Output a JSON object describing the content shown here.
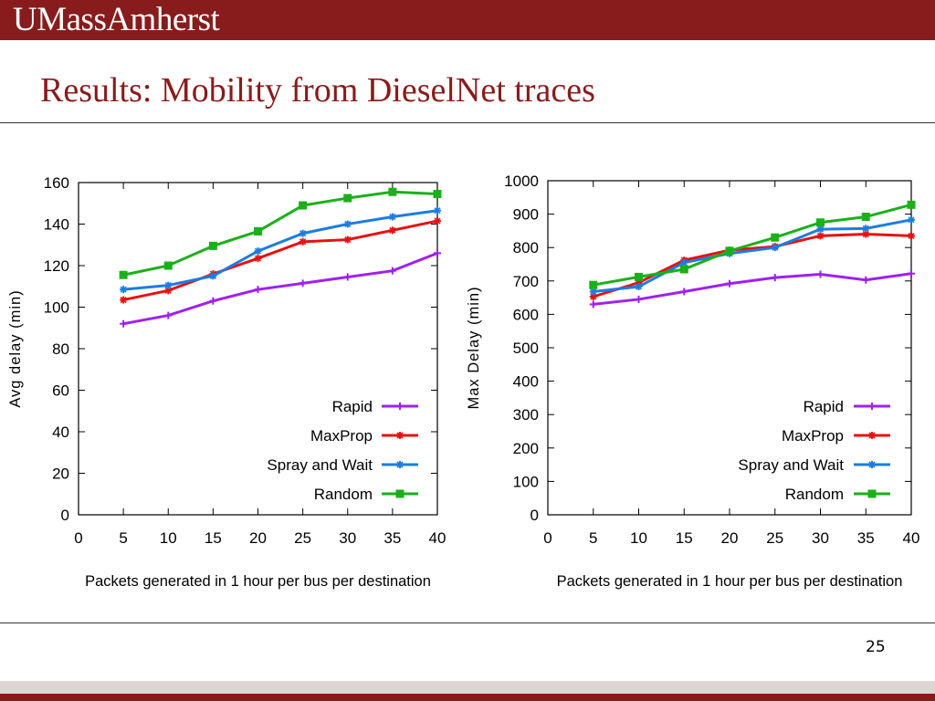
{
  "header": {
    "logo_text": "UMassAmherst",
    "bar_color": "#881c1c"
  },
  "slide": {
    "title": "Results: Mobility from DieselNet traces",
    "page_number": "25"
  },
  "chart_data": [
    {
      "type": "line",
      "title": "",
      "xlabel": "Packets generated in 1 hour per bus per destination",
      "ylabel": "Avg delay (min)",
      "x_ticks": [
        "0",
        "5",
        "10",
        "15",
        "20",
        "25",
        "30",
        "35",
        "40"
      ],
      "y_ticks": [
        "0",
        "20",
        "40",
        "60",
        "80",
        "100",
        "120",
        "140",
        "160"
      ],
      "xlim": [
        0,
        40
      ],
      "ylim": [
        0,
        160
      ],
      "legend_position": "bottom-right",
      "grid": false,
      "x": [
        5,
        10,
        15,
        20,
        25,
        30,
        35,
        40
      ],
      "series": [
        {
          "name": "Rapid",
          "color": "#a020f0",
          "marker": "plus",
          "values": [
            92,
            96,
            103,
            108.5,
            111.5,
            114.5,
            117.5,
            126
          ]
        },
        {
          "name": "MaxProp",
          "color": "#e81010",
          "marker": "star",
          "values": [
            103.5,
            108,
            116,
            123.5,
            131.5,
            132.5,
            137,
            141.5
          ]
        },
        {
          "name": "Spray and Wait",
          "color": "#1c7de0",
          "marker": "star",
          "values": [
            108.5,
            110.5,
            115,
            127,
            135.5,
            140,
            143.5,
            146.5
          ]
        },
        {
          "name": "Random",
          "color": "#1ab01a",
          "marker": "square",
          "values": [
            115.5,
            120,
            129.5,
            136.5,
            149,
            152.5,
            155.5,
            154.5
          ]
        }
      ]
    },
    {
      "type": "line",
      "title": "",
      "xlabel": "Packets generated in 1 hour per bus per destination",
      "ylabel": "Max Delay (min)",
      "x_ticks": [
        "0",
        "5",
        "10",
        "15",
        "20",
        "25",
        "30",
        "35",
        "40"
      ],
      "y_ticks": [
        "0",
        "100",
        "200",
        "300",
        "400",
        "500",
        "600",
        "700",
        "800",
        "900",
        "1000"
      ],
      "xlim": [
        0,
        40
      ],
      "ylim": [
        0,
        1000
      ],
      "legend_position": "bottom-right",
      "grid": false,
      "x": [
        5,
        10,
        15,
        20,
        25,
        30,
        35,
        40
      ],
      "series": [
        {
          "name": "Rapid",
          "color": "#a020f0",
          "marker": "plus",
          "values": [
            630,
            645,
            668,
            692,
            710,
            720,
            703,
            722
          ]
        },
        {
          "name": "MaxProp",
          "color": "#e81010",
          "marker": "star",
          "values": [
            653,
            695,
            762,
            792,
            803,
            835,
            840,
            835
          ]
        },
        {
          "name": "Spray and Wait",
          "color": "#1c7de0",
          "marker": "star",
          "values": [
            668,
            683,
            755,
            782,
            800,
            855,
            857,
            883
          ]
        },
        {
          "name": "Random",
          "color": "#1ab01a",
          "marker": "square",
          "values": [
            688,
            712,
            735,
            790,
            830,
            875,
            892,
            928
          ]
        }
      ]
    }
  ]
}
